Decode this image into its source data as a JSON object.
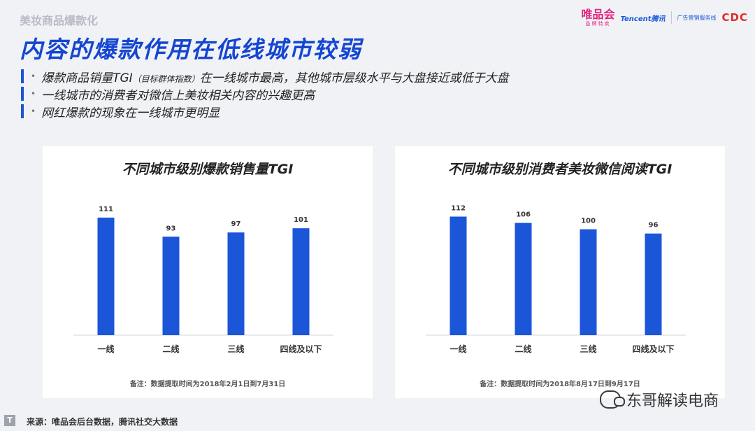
{
  "header": {
    "section_label": "美妆商品爆款化",
    "headline": "内容的爆款作用在低线城市较弱"
  },
  "logos": {
    "vip_main": "唯品会",
    "vip_sub": "品牌特卖",
    "tencent": "Tencent腾讯",
    "ad": "广告营销服务线",
    "cdc": "CDC"
  },
  "bullets": [
    {
      "pre": "爆款商品销量TGI",
      "small": "（目标群体指数）",
      "post": "在一线城市最高，其他城市层级水平与大盘接近或低于大盘"
    },
    {
      "pre": "一线城市的消费者对微信上美妆相关内容的兴趣更高",
      "small": "",
      "post": ""
    },
    {
      "pre": "网红爆款的现象在一线城市更明显",
      "small": "",
      "post": ""
    }
  ],
  "colors": {
    "accent": "#1446d2",
    "bar": "#1b55d8",
    "bullet_bar": "#1b55d8"
  },
  "chart_data": [
    {
      "type": "bar",
      "title": "不同城市级别爆款销售量TGI",
      "categories": [
        "一线",
        "二线",
        "三线",
        "四线及以下"
      ],
      "values": [
        111,
        93,
        97,
        101
      ],
      "ylim": [
        0,
        115
      ],
      "grid": false,
      "note": "备注：数据提取时间为2018年2月1日到7月31日"
    },
    {
      "type": "bar",
      "title": "不同城市级别消费者美妆微信阅读TGI",
      "categories": [
        "一线",
        "二线",
        "三线",
        "四线及以下"
      ],
      "values": [
        112,
        106,
        100,
        96
      ],
      "ylim": [
        0,
        115
      ],
      "grid": false,
      "note": "备注：数据提取时间为2018年8月17日到9月17日"
    }
  ],
  "footer": {
    "source_icon": "T",
    "source": "来源：唯品会后台数据，腾讯社交大数据",
    "watermark": "东哥解读电商"
  }
}
